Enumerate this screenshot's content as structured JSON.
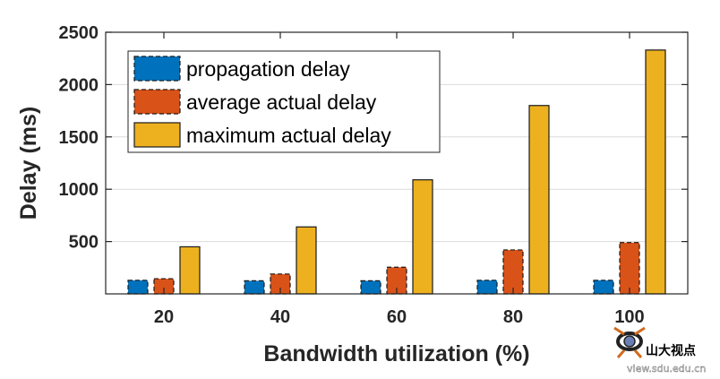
{
  "chart_data": {
    "type": "bar",
    "categories": [
      "20",
      "40",
      "60",
      "80",
      "100"
    ],
    "series": [
      {
        "name": "propagation delay",
        "values": [
          130,
          125,
          125,
          130,
          130
        ],
        "color": "#0072BD",
        "dashed": true
      },
      {
        "name": "average actual delay",
        "values": [
          145,
          190,
          255,
          420,
          490
        ],
        "color": "#D95319",
        "dashed": true
      },
      {
        "name": "maximum actual delay",
        "values": [
          450,
          640,
          1090,
          1800,
          2330
        ],
        "color": "#EDB120",
        "dashed": false
      }
    ],
    "title": "",
    "xlabel": "Bandwidth utilization (%)",
    "ylabel": "Delay (ms)",
    "ylim": [
      0,
      2500
    ],
    "yticks": [
      "500",
      "1000",
      "1500",
      "2000",
      "2500"
    ],
    "grid": true,
    "legend_position": "top-left"
  },
  "watermark": {
    "text": "山大视点",
    "url": "view.sdu.edu.cn"
  }
}
